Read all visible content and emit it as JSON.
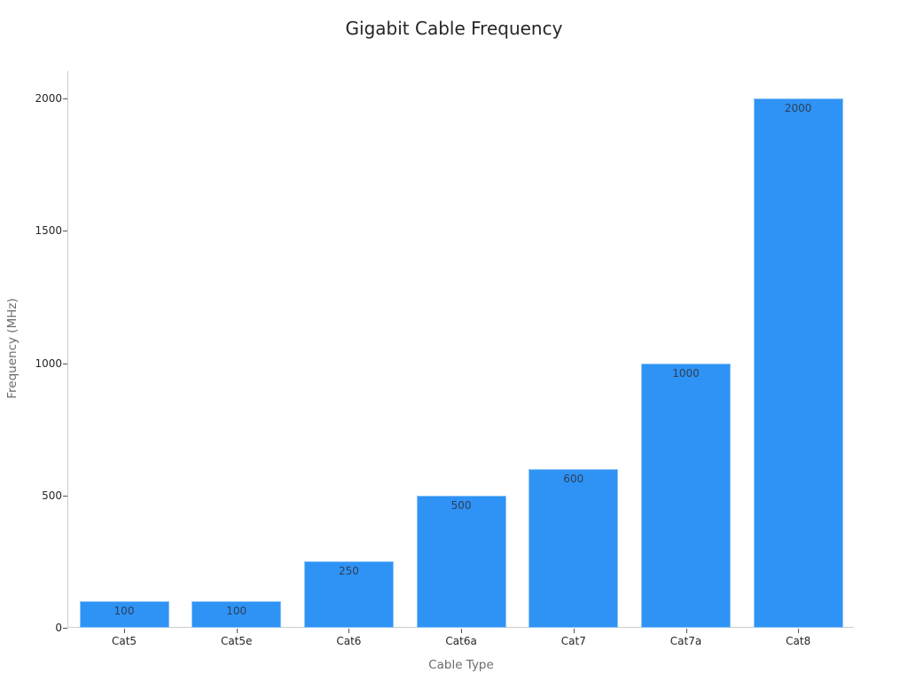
{
  "chart_data": {
    "type": "bar",
    "title": "Gigabit Cable Frequency",
    "xlabel": "Cable Type",
    "ylabel": "Frequency (MHz)",
    "categories": [
      "Cat5",
      "Cat5e",
      "Cat6",
      "Cat6a",
      "Cat7",
      "Cat7a",
      "Cat8"
    ],
    "values": [
      100,
      100,
      250,
      500,
      600,
      1000,
      2000
    ],
    "data_labels": [
      "100",
      "100",
      "250",
      "500",
      "600",
      "1000",
      "2000"
    ],
    "yticks": [
      0,
      500,
      1000,
      1500,
      2000
    ],
    "ytick_labels": [
      "0",
      "500",
      "1000",
      "1500",
      "2000"
    ],
    "ylim": [
      0,
      2100
    ],
    "grid": false,
    "legend": null,
    "bar_color": "#2e93f5"
  }
}
